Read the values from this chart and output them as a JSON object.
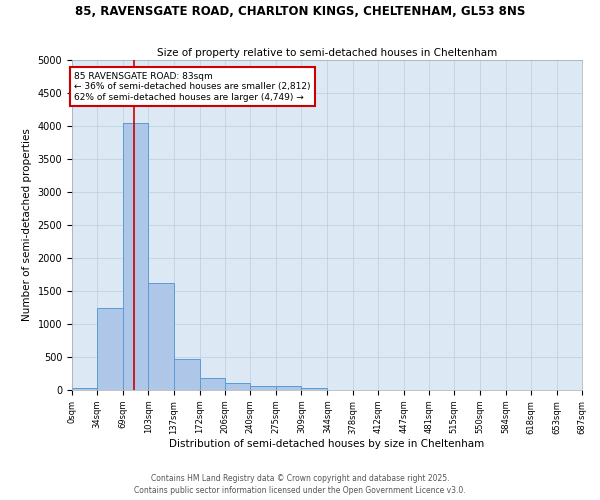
{
  "title1": "85, RAVENSGATE ROAD, CHARLTON KINGS, CHELTENHAM, GL53 8NS",
  "title2": "Size of property relative to semi-detached houses in Cheltenham",
  "xlabel": "Distribution of semi-detached houses by size in Cheltenham",
  "ylabel": "Number of semi-detached properties",
  "bin_edges": [
    0,
    34,
    69,
    103,
    137,
    172,
    206,
    240,
    275,
    309,
    344,
    378,
    412,
    447,
    481,
    515,
    550,
    584,
    618,
    653,
    687
  ],
  "bar_heights": [
    30,
    1250,
    4050,
    1625,
    475,
    175,
    110,
    55,
    55,
    30,
    0,
    0,
    0,
    0,
    0,
    0,
    0,
    0,
    0,
    0
  ],
  "bar_color": "#aec6e8",
  "bar_edge_color": "#5b9bd5",
  "property_size": 83,
  "property_label": "85 RAVENSGATE ROAD: 83sqm",
  "annotation_line1": "← 36% of semi-detached houses are smaller (2,812)",
  "annotation_line2": "62% of semi-detached houses are larger (4,749) →",
  "vline_color": "#cc0000",
  "annotation_box_color": "#cc0000",
  "ylim": [
    0,
    5000
  ],
  "yticks": [
    0,
    500,
    1000,
    1500,
    2000,
    2500,
    3000,
    3500,
    4000,
    4500,
    5000
  ],
  "background_color": "#ffffff",
  "plot_bg_color": "#dce9f5",
  "grid_color": "#b8cfe0",
  "footer1": "Contains HM Land Registry data © Crown copyright and database right 2025.",
  "footer2": "Contains public sector information licensed under the Open Government Licence v3.0."
}
